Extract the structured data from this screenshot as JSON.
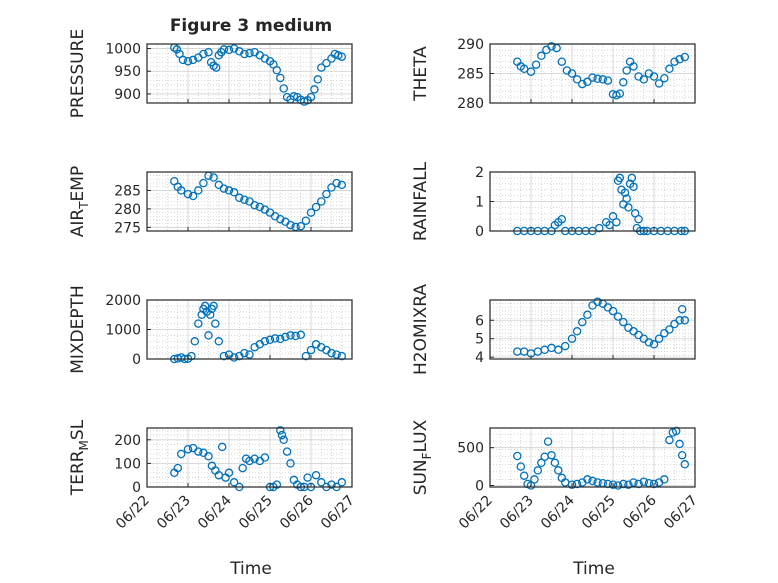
{
  "figure_title": "Figure 3 medium",
  "colors": {
    "marker": "#0072BD",
    "axes": "#262626",
    "grid": "#bdbdbd",
    "box_bg": "#ffffff"
  },
  "chart_data": [
    {
      "id": "pressure",
      "type": "scatter",
      "ylabel": "PRESSURE",
      "ylabel_sub": "",
      "yticks": [
        900,
        950,
        1000
      ],
      "ylim": [
        880,
        1010
      ],
      "x": [
        "06/22 16:00",
        "06/22 17:30",
        "06/22 19:00",
        "06/22 21:00",
        "06/23 00:00",
        "06/23 03:00",
        "06/23 06:00",
        "06/23 09:00",
        "06/23 12:00",
        "06/23 13:30",
        "06/23 15:00",
        "06/23 16:30",
        "06/23 18:00",
        "06/23 19:30",
        "06/23 21:00",
        "06/24 00:00",
        "06/24 03:00",
        "06/24 06:00",
        "06/24 09:00",
        "06/24 12:00",
        "06/24 15:00",
        "06/24 18:00",
        "06/24 21:00",
        "06/25 00:00",
        "06/25 02:00",
        "06/25 04:00",
        "06/25 06:00",
        "06/25 08:00",
        "06/25 10:00",
        "06/25 12:00",
        "06/25 14:00",
        "06/25 16:00",
        "06/25 18:00",
        "06/25 20:00",
        "06/25 22:00",
        "06/26 00:00",
        "06/26 02:00",
        "06/26 04:00",
        "06/26 06:00",
        "06/26 09:00",
        "06/26 12:00",
        "06/26 14:00",
        "06/26 16:00",
        "06/26 18:00"
      ],
      "y": [
        1002,
        998,
        988,
        975,
        972,
        975,
        980,
        988,
        992,
        970,
        962,
        958,
        985,
        992,
        998,
        997,
        1000,
        994,
        988,
        990,
        992,
        985,
        978,
        972,
        965,
        952,
        935,
        912,
        893,
        888,
        895,
        893,
        887,
        883,
        886,
        893,
        910,
        932,
        958,
        968,
        978,
        988,
        985,
        982
      ]
    },
    {
      "id": "theta",
      "type": "scatter",
      "ylabel": "THETA",
      "ylabel_sub": "",
      "yticks": [
        280,
        285,
        290
      ],
      "ylim": [
        280,
        290
      ],
      "x": [
        "06/22 16:00",
        "06/22 18:00",
        "06/22 20:00",
        "06/23 00:00",
        "06/23 03:00",
        "06/23 06:00",
        "06/23 09:00",
        "06/23 12:00",
        "06/23 15:00",
        "06/23 18:00",
        "06/23 21:00",
        "06/24 00:00",
        "06/24 03:00",
        "06/24 06:00",
        "06/24 09:00",
        "06/24 12:00",
        "06/24 15:00",
        "06/24 18:00",
        "06/24 21:00",
        "06/25 00:00",
        "06/25 02:00",
        "06/25 04:00",
        "06/25 06:00",
        "06/25 08:00",
        "06/25 10:00",
        "06/25 12:00",
        "06/25 15:00",
        "06/25 18:00",
        "06/25 21:00",
        "06/26 00:00",
        "06/26 03:00",
        "06/26 06:00",
        "06/26 09:00",
        "06/26 12:00",
        "06/26 15:00",
        "06/26 18:00"
      ],
      "y": [
        287,
        286.2,
        285.8,
        285.3,
        286.5,
        288,
        289,
        289.6,
        289.3,
        287,
        285.5,
        285,
        284,
        283.2,
        283.6,
        284.3,
        284.1,
        284,
        283.8,
        281.5,
        281.3,
        281.6,
        283.5,
        285.5,
        287,
        286.2,
        284.5,
        284,
        285,
        284.5,
        283.3,
        284.2,
        285.8,
        287,
        287.4,
        287.8
      ]
    },
    {
      "id": "air_temp",
      "type": "scatter",
      "ylabel": "AIR",
      "ylabel_sub": "T",
      "ylabel_tail": "EMP",
      "yticks": [
        275,
        280,
        285
      ],
      "ylim": [
        274,
        290
      ],
      "x": [
        "06/22 16:00",
        "06/22 18:00",
        "06/22 20:00",
        "06/23 00:00",
        "06/23 03:00",
        "06/23 06:00",
        "06/23 09:00",
        "06/23 12:00",
        "06/23 15:00",
        "06/23 18:00",
        "06/23 21:00",
        "06/24 00:00",
        "06/24 03:00",
        "06/24 06:00",
        "06/24 09:00",
        "06/24 12:00",
        "06/24 15:00",
        "06/24 18:00",
        "06/24 21:00",
        "06/25 00:00",
        "06/25 03:00",
        "06/25 06:00",
        "06/25 09:00",
        "06/25 12:00",
        "06/25 15:00",
        "06/25 18:00",
        "06/25 21:00",
        "06/26 00:00",
        "06/26 03:00",
        "06/26 06:00",
        "06/26 09:00",
        "06/26 12:00",
        "06/26 15:00",
        "06/26 18:00"
      ],
      "y": [
        287.5,
        286,
        285,
        284,
        283.5,
        285,
        287,
        289,
        288.5,
        286.5,
        285.5,
        285,
        284.5,
        283,
        282.5,
        282,
        281,
        280.5,
        279.8,
        279,
        278,
        277.2,
        276.5,
        275.6,
        275.1,
        275.3,
        276.8,
        279,
        280.5,
        282,
        284,
        285.8,
        287,
        286.5
      ]
    },
    {
      "id": "rainfall",
      "type": "scatter",
      "ylabel": "RAINFALL",
      "ylabel_sub": "",
      "yticks": [
        0,
        1,
        2
      ],
      "ylim": [
        0,
        2
      ],
      "x": [
        "06/22 16:00",
        "06/22 20:00",
        "06/23 00:00",
        "06/23 04:00",
        "06/23 08:00",
        "06/23 12:00",
        "06/23 14:00",
        "06/23 16:00",
        "06/23 18:00",
        "06/23 20:00",
        "06/24 00:00",
        "06/24 04:00",
        "06/24 08:00",
        "06/24 12:00",
        "06/24 16:00",
        "06/24 20:00",
        "06/24 22:00",
        "06/25 00:00",
        "06/25 02:00",
        "06/25 03:00",
        "06/25 04:00",
        "06/25 05:00",
        "06/25 06:00",
        "06/25 07:00",
        "06/25 08:00",
        "06/25 09:00",
        "06/25 10:00",
        "06/25 11:00",
        "06/25 12:00",
        "06/25 13:00",
        "06/25 14:00",
        "06/25 15:00",
        "06/25 16:00",
        "06/25 18:00",
        "06/25 20:00",
        "06/26 00:00",
        "06/26 04:00",
        "06/26 08:00",
        "06/26 12:00",
        "06/26 16:00",
        "06/26 18:00"
      ],
      "y": [
        0,
        0,
        0,
        0,
        0,
        0,
        0.2,
        0.3,
        0.4,
        0,
        0,
        0,
        0,
        0,
        0.1,
        0.3,
        0.2,
        0.5,
        0.3,
        1.7,
        1.8,
        1.4,
        0.9,
        1.3,
        1.1,
        0.8,
        1.6,
        1.8,
        1.5,
        0.6,
        0.1,
        0.4,
        0,
        0,
        0,
        0,
        0,
        0,
        0,
        0,
        0
      ]
    },
    {
      "id": "mixdepth",
      "type": "scatter",
      "ylabel": "MIXDEPTH",
      "ylabel_sub": "",
      "yticks": [
        0,
        1000,
        2000
      ],
      "ylim": [
        0,
        2000
      ],
      "x": [
        "06/22 16:00",
        "06/22 18:00",
        "06/22 20:00",
        "06/22 22:00",
        "06/23 00:00",
        "06/23 02:00",
        "06/23 04:00",
        "06/23 06:00",
        "06/23 08:00",
        "06/23 09:00",
        "06/23 10:00",
        "06/23 11:00",
        "06/23 12:00",
        "06/23 13:00",
        "06/23 14:00",
        "06/23 15:00",
        "06/23 16:00",
        "06/23 18:00",
        "06/23 21:00",
        "06/24 00:00",
        "06/24 03:00",
        "06/24 06:00",
        "06/24 09:00",
        "06/24 12:00",
        "06/24 15:00",
        "06/24 18:00",
        "06/24 21:00",
        "06/25 00:00",
        "06/25 03:00",
        "06/25 06:00",
        "06/25 09:00",
        "06/25 12:00",
        "06/25 15:00",
        "06/25 18:00",
        "06/25 21:00",
        "06/26 00:00",
        "06/26 03:00",
        "06/26 06:00",
        "06/26 09:00",
        "06/26 12:00",
        "06/26 15:00",
        "06/26 18:00"
      ],
      "y": [
        0,
        20,
        50,
        0,
        10,
        100,
        600,
        1200,
        1500,
        1700,
        1800,
        1600,
        800,
        1500,
        1700,
        1800,
        1200,
        600,
        100,
        150,
        50,
        100,
        200,
        150,
        400,
        500,
        600,
        650,
        700,
        680,
        750,
        800,
        780,
        820,
        100,
        300,
        500,
        400,
        300,
        200,
        150,
        100
      ]
    },
    {
      "id": "h2omixra",
      "type": "scatter",
      "ylabel": "H2OMIXRA",
      "ylabel_sub": "",
      "yticks": [
        4,
        5,
        6
      ],
      "ylim": [
        3.9,
        7.1
      ],
      "x": [
        "06/22 16:00",
        "06/22 20:00",
        "06/23 00:00",
        "06/23 04:00",
        "06/23 08:00",
        "06/23 12:00",
        "06/23 16:00",
        "06/23 20:00",
        "06/24 00:00",
        "06/24 03:00",
        "06/24 06:00",
        "06/24 09:00",
        "06/24 12:00",
        "06/24 15:00",
        "06/24 18:00",
        "06/24 21:00",
        "06/25 00:00",
        "06/25 03:00",
        "06/25 06:00",
        "06/25 09:00",
        "06/25 12:00",
        "06/25 15:00",
        "06/25 18:00",
        "06/25 21:00",
        "06/26 00:00",
        "06/26 03:00",
        "06/26 06:00",
        "06/26 09:00",
        "06/26 12:00",
        "06/26 15:00",
        "06/26 16:30",
        "06/26 18:00"
      ],
      "y": [
        4.3,
        4.3,
        4.2,
        4.3,
        4.4,
        4.5,
        4.4,
        4.6,
        5.0,
        5.4,
        5.9,
        6.3,
        6.8,
        7.0,
        6.9,
        6.7,
        6.5,
        6.2,
        5.9,
        5.6,
        5.4,
        5.2,
        5.0,
        4.8,
        4.7,
        5.0,
        5.3,
        5.5,
        5.8,
        6.0,
        6.6,
        6.0
      ]
    },
    {
      "id": "terr_msl",
      "type": "scatter",
      "ylabel": "TERR",
      "ylabel_sub": "M",
      "ylabel_tail": "SL",
      "yticks": [
        0,
        100,
        200
      ],
      "ylim": [
        0,
        250
      ],
      "x": [
        "06/22 16:00",
        "06/22 18:00",
        "06/22 20:00",
        "06/23 00:00",
        "06/23 03:00",
        "06/23 06:00",
        "06/23 09:00",
        "06/23 12:00",
        "06/23 14:00",
        "06/23 16:00",
        "06/23 18:00",
        "06/23 20:00",
        "06/23 22:00",
        "06/24 00:00",
        "06/24 03:00",
        "06/24 06:00",
        "06/24 08:00",
        "06/24 10:00",
        "06/24 12:00",
        "06/24 15:00",
        "06/24 18:00",
        "06/24 21:00",
        "06/25 00:00",
        "06/25 02:00",
        "06/25 04:00",
        "06/25 06:00",
        "06/25 07:00",
        "06/25 08:00",
        "06/25 10:00",
        "06/25 12:00",
        "06/25 14:00",
        "06/25 16:00",
        "06/25 18:00",
        "06/25 20:00",
        "06/25 22:00",
        "06/26 00:00",
        "06/26 03:00",
        "06/26 06:00",
        "06/26 09:00",
        "06/26 12:00",
        "06/26 15:00",
        "06/26 18:00"
      ],
      "y": [
        60,
        80,
        140,
        160,
        165,
        150,
        145,
        130,
        90,
        70,
        50,
        170,
        40,
        60,
        20,
        0,
        80,
        120,
        110,
        120,
        110,
        125,
        0,
        0,
        10,
        240,
        220,
        200,
        150,
        100,
        30,
        10,
        0,
        0,
        40,
        0,
        50,
        20,
        0,
        10,
        0,
        20
      ]
    },
    {
      "id": "sun_flux",
      "type": "scatter",
      "ylabel": "SUN",
      "ylabel_sub": "F",
      "ylabel_tail": "LUX",
      "yticks": [
        0,
        500
      ],
      "ylim": [
        -20,
        760
      ],
      "x": [
        "06/22 16:00",
        "06/22 18:00",
        "06/22 20:00",
        "06/22 22:00",
        "06/23 00:00",
        "06/23 02:00",
        "06/23 04:00",
        "06/23 06:00",
        "06/23 08:00",
        "06/23 10:00",
        "06/23 12:00",
        "06/23 14:00",
        "06/23 16:00",
        "06/23 18:00",
        "06/23 20:00",
        "06/24 00:00",
        "06/24 03:00",
        "06/24 06:00",
        "06/24 09:00",
        "06/24 12:00",
        "06/24 15:00",
        "06/24 18:00",
        "06/24 21:00",
        "06/25 00:00",
        "06/25 03:00",
        "06/25 06:00",
        "06/25 09:00",
        "06/25 12:00",
        "06/25 15:00",
        "06/25 18:00",
        "06/25 21:00",
        "06/26 00:00",
        "06/26 03:00",
        "06/26 06:00",
        "06/26 09:00",
        "06/26 11:00",
        "06/26 13:00",
        "06/26 15:00",
        "06/26 16:30",
        "06/26 18:00"
      ],
      "y": [
        390,
        250,
        130,
        20,
        0,
        80,
        200,
        300,
        380,
        580,
        400,
        300,
        200,
        100,
        40,
        10,
        20,
        40,
        80,
        60,
        40,
        30,
        20,
        10,
        0,
        20,
        10,
        40,
        20,
        50,
        30,
        20,
        40,
        80,
        600,
        700,
        720,
        550,
        400,
        280
      ]
    }
  ],
  "x_axis": {
    "ticks": [
      "06/22",
      "06/23",
      "06/24",
      "06/25",
      "06/26",
      "06/27"
    ],
    "xlabel": "Time"
  }
}
